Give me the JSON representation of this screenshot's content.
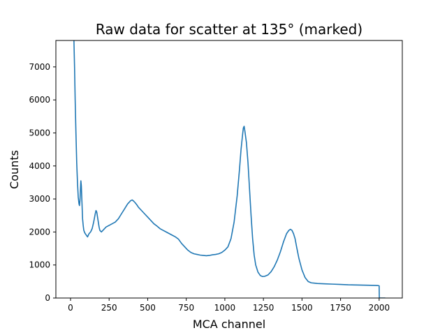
{
  "chart_data": {
    "type": "line",
    "title": "Raw data for scatter at 135° (marked)",
    "xlabel": "MCA channel",
    "ylabel": "Counts",
    "xlim": [
      -95,
      2150
    ],
    "ylim": [
      0,
      7800
    ],
    "xticks": [
      0,
      250,
      500,
      750,
      1000,
      1250,
      1500,
      1750,
      2000
    ],
    "yticks": [
      0,
      1000,
      2000,
      3000,
      4000,
      5000,
      6000,
      7000
    ],
    "grid": false,
    "legend": "none",
    "series": [
      {
        "color": "#1f77b4",
        "x": [
          22,
          26,
          30,
          35,
          40,
          45,
          50,
          55,
          58,
          61,
          64,
          67,
          70,
          74,
          78,
          82,
          86,
          90,
          95,
          100,
          110,
          120,
          130,
          140,
          150,
          160,
          165,
          170,
          175,
          180,
          185,
          190,
          200,
          210,
          220,
          230,
          250,
          270,
          290,
          310,
          330,
          350,
          370,
          390,
          400,
          410,
          420,
          430,
          440,
          460,
          480,
          500,
          520,
          540,
          560,
          580,
          600,
          620,
          640,
          660,
          680,
          700,
          720,
          740,
          760,
          780,
          800,
          820,
          840,
          860,
          880,
          900,
          920,
          940,
          960,
          980,
          1000,
          1020,
          1040,
          1060,
          1080,
          1095,
          1105,
          1115,
          1120,
          1125,
          1130,
          1140,
          1150,
          1160,
          1170,
          1180,
          1190,
          1200,
          1215,
          1230,
          1245,
          1260,
          1280,
          1300,
          1320,
          1340,
          1360,
          1380,
          1400,
          1415,
          1425,
          1435,
          1445,
          1455,
          1465,
          1480,
          1500,
          1520,
          1540,
          1560,
          1580,
          1600,
          1650,
          1700,
          1750,
          1800,
          1850,
          1900,
          1950,
          1990,
          2000,
          2001,
          2005,
          2012,
          2014,
          2020,
          2040
        ],
        "y": [
          7800,
          7000,
          6000,
          5000,
          4100,
          3500,
          3050,
          2850,
          2800,
          2950,
          3250,
          3550,
          3400,
          2900,
          2400,
          2200,
          2050,
          2000,
          1950,
          1920,
          1850,
          1950,
          2000,
          2100,
          2300,
          2550,
          2650,
          2600,
          2450,
          2300,
          2150,
          2050,
          2000,
          2050,
          2100,
          2150,
          2200,
          2250,
          2300,
          2400,
          2550,
          2700,
          2850,
          2950,
          2970,
          2930,
          2880,
          2820,
          2750,
          2650,
          2550,
          2450,
          2350,
          2250,
          2180,
          2100,
          2050,
          2000,
          1950,
          1900,
          1850,
          1780,
          1650,
          1550,
          1450,
          1380,
          1340,
          1320,
          1300,
          1290,
          1280,
          1290,
          1310,
          1320,
          1340,
          1380,
          1450,
          1550,
          1800,
          2300,
          3100,
          3900,
          4500,
          4950,
          5150,
          5200,
          5050,
          4700,
          4100,
          3300,
          2500,
          1800,
          1300,
          1000,
          780,
          680,
          650,
          660,
          700,
          800,
          950,
          1150,
          1400,
          1700,
          1950,
          2050,
          2080,
          2050,
          1950,
          1800,
          1550,
          1200,
          850,
          620,
          500,
          460,
          450,
          440,
          430,
          420,
          410,
          400,
          395,
          390,
          385,
          380,
          370,
          0,
          0,
          0,
          0,
          0,
          0
        ]
      }
    ]
  }
}
